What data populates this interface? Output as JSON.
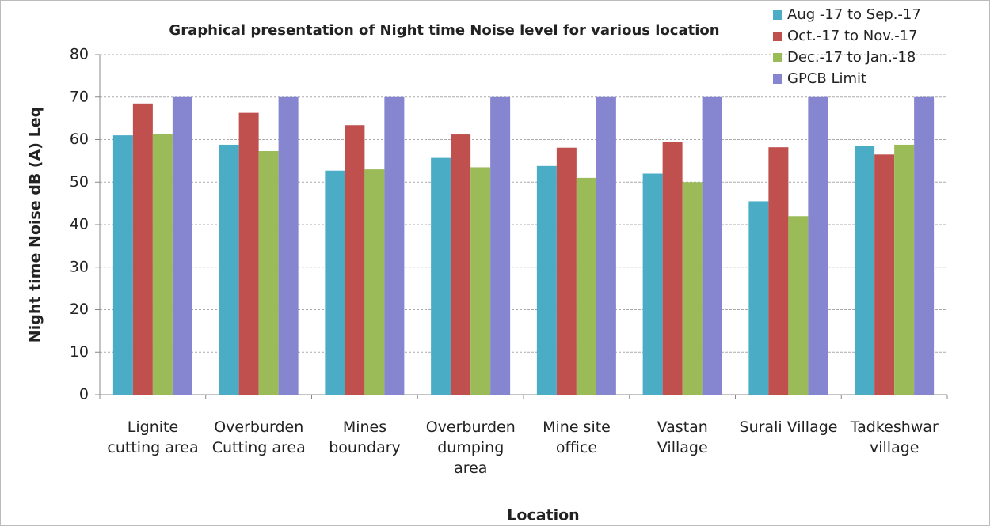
{
  "chart_data": {
    "type": "bar",
    "title": "Graphical presentation of  Night time Noise level for various location",
    "xlabel": "Location",
    "ylabel": "Night time Noise dB (A) Leq",
    "categories": [
      "Lignite\ncutting area",
      "Overburden\nCutting area",
      "Mines\nboundary",
      "Overburden\ndumping\narea",
      "Mine site\noffice",
      "Vastan\nVillage",
      "Surali Village",
      "Tadkeshwar\nvillage"
    ],
    "series": [
      {
        "name": "Aug -17 to Sep.-17",
        "color": "#4bacc6",
        "values": [
          61,
          58.8,
          52.7,
          55.7,
          53.8,
          52,
          45.5,
          58.5
        ]
      },
      {
        "name": "Oct.-17 to Nov.-17",
        "color": "#c0504d",
        "values": [
          68.5,
          66.3,
          63.4,
          61.2,
          58.1,
          59.4,
          58.2,
          56.5
        ]
      },
      {
        "name": "Dec.-17 to Jan.-18",
        "color": "#9bbb59",
        "values": [
          61.3,
          57.3,
          53,
          53.5,
          51,
          50,
          42,
          58.8
        ]
      },
      {
        "name": "GPCB Limit",
        "color": "#8585d0",
        "values": [
          70,
          70,
          70,
          70,
          70,
          70,
          70,
          70
        ]
      }
    ],
    "ylim": [
      0,
      80
    ],
    "yticks": [
      0,
      10,
      20,
      30,
      40,
      50,
      60,
      70,
      80
    ],
    "grid": true,
    "legend": "top-right"
  }
}
